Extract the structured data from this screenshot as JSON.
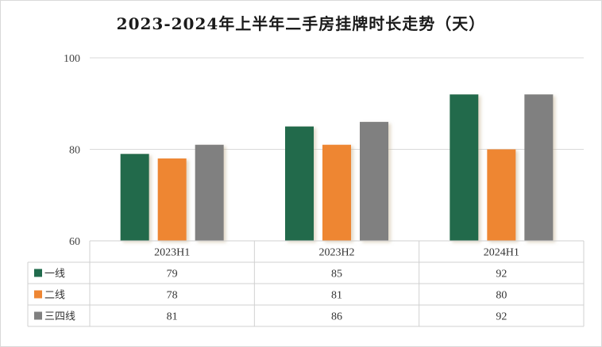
{
  "chart_data": {
    "type": "bar",
    "title": "2023-2024年上半年二手房挂牌时长走势（天）",
    "categories": [
      "2023H1",
      "2023H2",
      "2024H1"
    ],
    "series": [
      {
        "name": "一线",
        "values": [
          79,
          85,
          92
        ],
        "color": "#216b4c"
      },
      {
        "name": "二线",
        "values": [
          78,
          81,
          80
        ],
        "color": "#ee8633"
      },
      {
        "name": "三四线",
        "values": [
          81,
          86,
          92
        ],
        "color": "#808080"
      }
    ],
    "ylim": [
      60,
      100
    ],
    "yticks": [
      60,
      80,
      100
    ],
    "grid": true,
    "legend": "data-table"
  }
}
